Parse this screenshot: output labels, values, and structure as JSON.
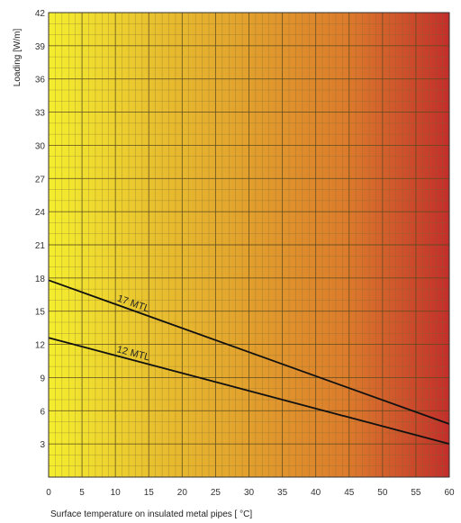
{
  "chart_data": {
    "type": "line",
    "xlabel": "Surface temperature on insulated metal pipes [      °C]",
    "ylabel": "Loading [W/m]",
    "xlim": [
      0,
      60
    ],
    "ylim": [
      0,
      42
    ],
    "x_ticks": [
      "0",
      "5",
      "10",
      "15",
      "20",
      "25",
      "30",
      "35",
      "40",
      "45",
      "50",
      "55",
      "60"
    ],
    "y_ticks": [
      "3",
      "6",
      "9",
      "12",
      "15",
      "18",
      "21",
      "24",
      "27",
      "30",
      "33",
      "36",
      "39",
      "42"
    ],
    "grid": true,
    "grid_minor_step_x": 1,
    "grid_minor_step_y": 1,
    "background_gradient": [
      "#f4ee2f",
      "#e9c22f",
      "#e2a02d",
      "#dc7a2c",
      "#c22e2b"
    ],
    "series": [
      {
        "name": "17 MTL",
        "color": "#111111",
        "x": [
          0,
          60
        ],
        "y": [
          17.8,
          4.8
        ],
        "label_at_x": 10
      },
      {
        "name": "12 MTL",
        "color": "#111111",
        "x": [
          0,
          60
        ],
        "y": [
          12.6,
          3.0
        ],
        "label_at_x": 10
      }
    ]
  }
}
